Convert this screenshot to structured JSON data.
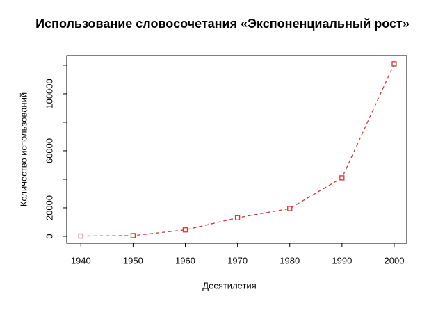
{
  "chart_data": {
    "type": "line",
    "title": "Использование словосочетания «Экспоненциальный рост»",
    "x_label": "Десятилетия",
    "y_label": "Количество использований",
    "x": [
      1940,
      1950,
      1960,
      1970,
      1980,
      1990,
      2000
    ],
    "series": [
      {
        "color": "#d0373b",
        "values": [
          200,
          500,
          4500,
          13000,
          19500,
          41000,
          121000
        ]
      }
    ],
    "xlim": [
      1937.3,
      2002.4
    ],
    "xticks": [
      1940,
      1950,
      1960,
      1970,
      1980,
      1990,
      2000
    ],
    "ylim": [
      -4900,
      126800
    ],
    "yticks": [
      0,
      20000,
      {
        "value": 40000,
        "label": null
      },
      60000,
      {
        "value": 80000,
        "label": null
      },
      100000,
      {
        "value": 120000,
        "label": null
      }
    ],
    "line_style": "dashed",
    "marker": "square"
  }
}
